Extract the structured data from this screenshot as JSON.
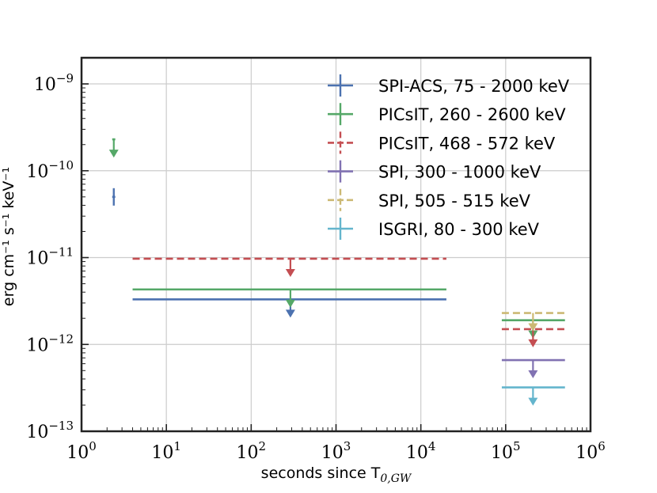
{
  "chart_data": {
    "type": "scatter",
    "xscale": "log",
    "yscale": "log",
    "xlim": [
      1,
      1000000
    ],
    "ylim": [
      1e-13,
      2e-09
    ],
    "grid": true,
    "legend_position": "top-right",
    "xlabel": "seconds since T",
    "xlabel_subscript": "0,GW",
    "ylabel": "erg cm⁻¹ s⁻¹ keV⁻¹",
    "x_ticks": [
      {
        "value": 1,
        "base": "10",
        "exp": "0"
      },
      {
        "value": 10,
        "base": "10",
        "exp": "1"
      },
      {
        "value": 100,
        "base": "10",
        "exp": "2"
      },
      {
        "value": 1000,
        "base": "10",
        "exp": "3"
      },
      {
        "value": 10000,
        "base": "10",
        "exp": "4"
      },
      {
        "value": 100000,
        "base": "10",
        "exp": "5"
      },
      {
        "value": 1000000,
        "base": "10",
        "exp": "6"
      }
    ],
    "y_ticks": [
      {
        "value": 1e-09,
        "base": "10",
        "exp": "−9"
      },
      {
        "value": 1e-10,
        "base": "10",
        "exp": "−10"
      },
      {
        "value": 1e-11,
        "base": "10",
        "exp": "−11"
      },
      {
        "value": 1e-12,
        "base": "10",
        "exp": "−12"
      },
      {
        "value": 1e-13,
        "base": "10",
        "exp": "−13"
      }
    ],
    "series": [
      {
        "name": "SPI-ACS, 75 - 2000 keV",
        "color": "#4c72b0",
        "dashed": false,
        "points": [
          {
            "x": 2.4,
            "xerr": [
              2.3,
              2.5
            ],
            "y": 5e-11,
            "upper_limit": false
          },
          {
            "x": 290,
            "xerr": [
              4,
              20000
            ],
            "y": 3.3e-12,
            "upper_limit": true
          }
        ]
      },
      {
        "name": "PICsIT, 260 - 2600 keV",
        "color": "#55a868",
        "dashed": false,
        "points": [
          {
            "x": 2.4,
            "xerr": [
              2.3,
              2.5
            ],
            "y": 2.3e-10,
            "upper_limit": true
          },
          {
            "x": 290,
            "xerr": [
              4,
              20000
            ],
            "y": 4.3e-12,
            "upper_limit": true
          },
          {
            "x": 210000,
            "xerr": [
              90000,
              500000
            ],
            "y": 1.9e-12,
            "upper_limit": true
          }
        ]
      },
      {
        "name": "PICsIT, 468 - 572 keV",
        "color": "#c44e52",
        "dashed": true,
        "points": [
          {
            "x": 290,
            "xerr": [
              4,
              20000
            ],
            "y": 9.7e-12,
            "upper_limit": true
          },
          {
            "x": 210000,
            "xerr": [
              90000,
              500000
            ],
            "y": 1.5e-12,
            "upper_limit": true
          }
        ]
      },
      {
        "name": "SPI, 300 - 1000 keV",
        "color": "#8172b2",
        "dashed": false,
        "points": [
          {
            "x": 210000,
            "xerr": [
              90000,
              500000
            ],
            "y": 6.6e-13,
            "upper_limit": true
          }
        ]
      },
      {
        "name": "SPI, 505 - 515 keV",
        "color": "#ccb974",
        "dashed": true,
        "points": [
          {
            "x": 210000,
            "xerr": [
              90000,
              500000
            ],
            "y": 2.3e-12,
            "upper_limit": true
          }
        ]
      },
      {
        "name": "ISGRI, 80 - 300 keV",
        "color": "#64b5cd",
        "dashed": false,
        "points": [
          {
            "x": 210000,
            "xerr": [
              90000,
              500000
            ],
            "y": 3.2e-13,
            "upper_limit": true
          }
        ]
      }
    ]
  }
}
